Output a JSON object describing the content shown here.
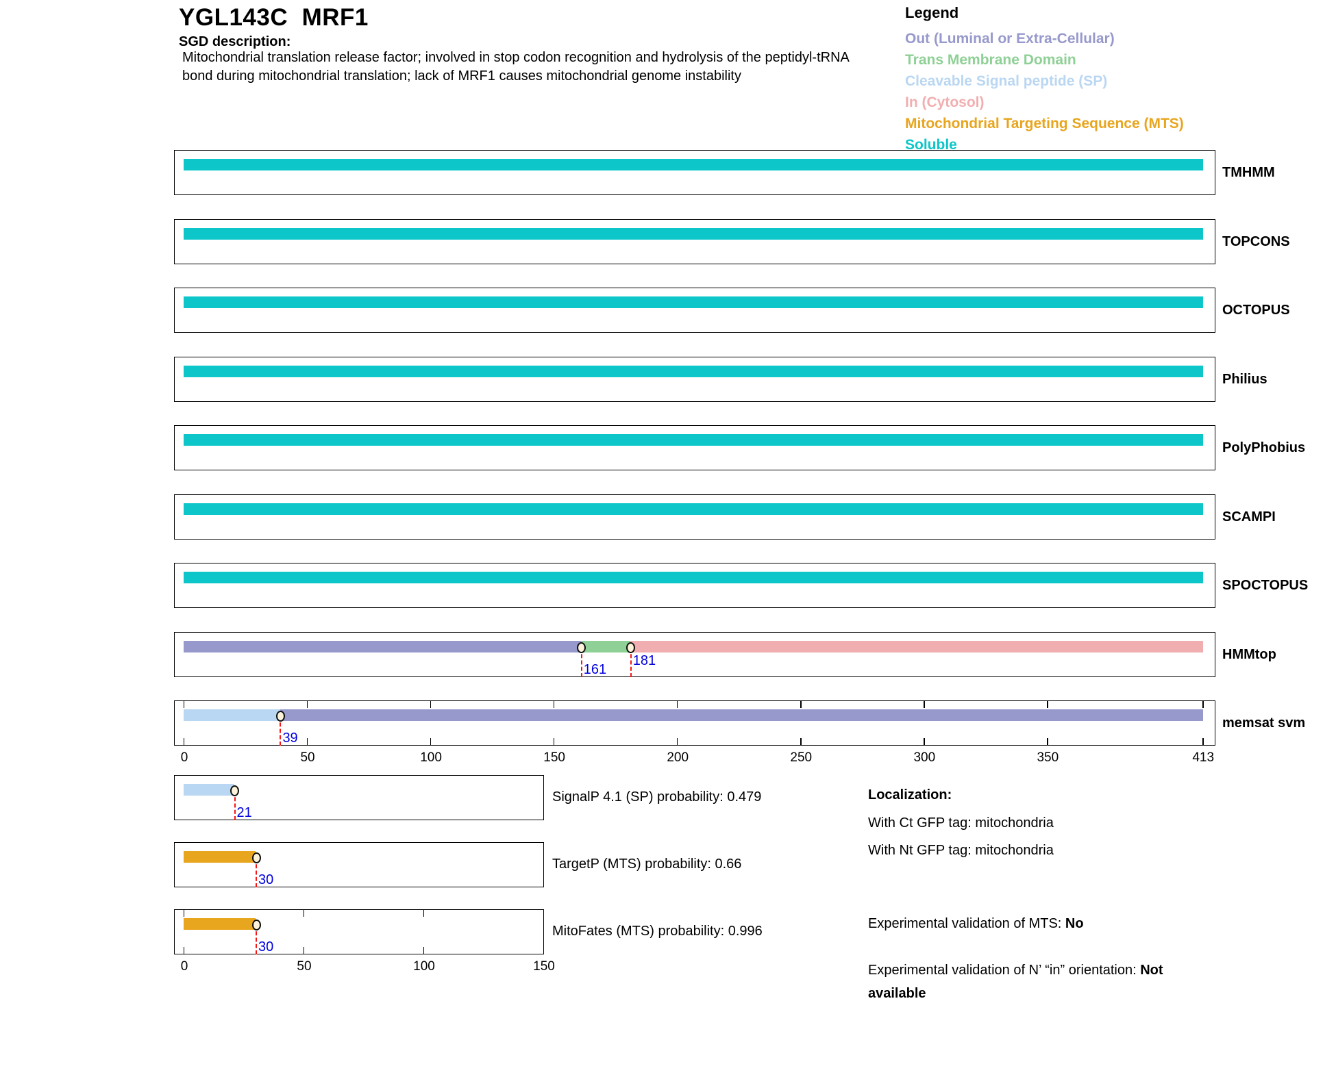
{
  "header": {
    "title": "YGL143C  MRF1",
    "sgd_label": "SGD description:",
    "description_lines": [
      "Mitochondrial translation release factor; involved in stop codon recognition and hydrolysis of the peptidyl-tRNA",
      "bond during mitochondrial translation; lack of MRF1 causes mitochondrial genome instability"
    ]
  },
  "legend": {
    "title": "Legend",
    "item_keys": [
      "out",
      "tmd",
      "sp",
      "in",
      "mts",
      "soluble"
    ]
  },
  "chart_data": {
    "type": "bar",
    "subtype": "protein-topology-tracks",
    "sequence_length": 413,
    "x_axis": {
      "min": 0,
      "max": 413,
      "ticks": [
        0,
        50,
        100,
        150,
        200,
        250,
        300,
        350,
        413
      ]
    },
    "probability_axis": {
      "min": 0,
      "max": 150,
      "ticks": [
        0,
        50,
        100,
        150
      ]
    },
    "categories": {
      "out": {
        "label": "Out (Luminal or Extra-Cellular)",
        "color": "#9799cc"
      },
      "tmd": {
        "label": "Trans Membrane Domain",
        "color": "#8ed095"
      },
      "sp": {
        "label": "Cleavable Signal peptide (SP)",
        "color": "#b9d6f2"
      },
      "in": {
        "label": "In (Cytosol)",
        "color": "#f1aeb0"
      },
      "mts": {
        "label": "Mitochondrial Targeting Sequence (MTS)",
        "color": "#e8a51e"
      },
      "soluble": {
        "label": "Soluble",
        "color": "#0cc6c9"
      }
    },
    "tracks": [
      {
        "name": "TMHMM",
        "segments": [
          {
            "start": 0,
            "end": 413,
            "category": "soluble"
          }
        ],
        "markers": []
      },
      {
        "name": "TOPCONS",
        "segments": [
          {
            "start": 0,
            "end": 413,
            "category": "soluble"
          }
        ],
        "markers": []
      },
      {
        "name": "OCTOPUS",
        "segments": [
          {
            "start": 0,
            "end": 413,
            "category": "soluble"
          }
        ],
        "markers": []
      },
      {
        "name": "Philius",
        "segments": [
          {
            "start": 0,
            "end": 413,
            "category": "soluble"
          }
        ],
        "markers": []
      },
      {
        "name": "PolyPhobius",
        "segments": [
          {
            "start": 0,
            "end": 413,
            "category": "soluble"
          }
        ],
        "markers": []
      },
      {
        "name": "SCAMPI",
        "segments": [
          {
            "start": 0,
            "end": 413,
            "category": "soluble"
          }
        ],
        "markers": []
      },
      {
        "name": "SPOCTOPUS",
        "segments": [
          {
            "start": 0,
            "end": 413,
            "category": "soluble"
          }
        ],
        "markers": []
      },
      {
        "name": "HMMtop",
        "segments": [
          {
            "start": 0,
            "end": 161,
            "category": "out"
          },
          {
            "start": 161,
            "end": 181,
            "category": "tmd"
          },
          {
            "start": 181,
            "end": 413,
            "category": "in"
          }
        ],
        "markers": [
          {
            "pos": 161,
            "label": "161",
            "label_pos": "low"
          },
          {
            "pos": 181,
            "label": "181",
            "label_pos": "high"
          }
        ]
      },
      {
        "name": "memsat svm",
        "segments": [
          {
            "start": 0,
            "end": 39,
            "category": "sp"
          },
          {
            "start": 39,
            "end": 413,
            "category": "out"
          }
        ],
        "markers": [
          {
            "pos": 39,
            "label": "39",
            "label_pos": "low"
          }
        ],
        "show_ticks": true,
        "show_axis": true
      }
    ],
    "probability_tracks": [
      {
        "name": "SignalP 4.1 (SP)",
        "display_label": "SignalP 4.1 (SP) probability: 0.479",
        "probability": 0.479,
        "segments": [
          {
            "start": 0,
            "end": 21,
            "category": "sp"
          }
        ],
        "markers": [
          {
            "pos": 21,
            "label": "21",
            "label_pos": "low"
          }
        ]
      },
      {
        "name": "TargetP (MTS)",
        "display_label": "TargetP (MTS) probability: 0.66",
        "probability": 0.66,
        "segments": [
          {
            "start": 0,
            "end": 30,
            "category": "mts"
          }
        ],
        "markers": [
          {
            "pos": 30,
            "label": "30",
            "label_pos": "low"
          }
        ]
      },
      {
        "name": "MitoFates (MTS)",
        "display_label": "MitoFates (MTS) probability: 0.996",
        "probability": 0.996,
        "segments": [
          {
            "start": 0,
            "end": 30,
            "category": "mts"
          }
        ],
        "markers": [
          {
            "pos": 30,
            "label": "30",
            "label_pos": "low"
          }
        ],
        "show_ticks": true,
        "show_axis": true
      }
    ],
    "marker_style": {
      "dot_fill": "#fcf3da",
      "dot_stroke": "#101010",
      "line_color": "#f51515",
      "label_color": "#0202dd"
    }
  },
  "localization": {
    "title": "Localization:",
    "lines": [
      "With Ct GFP tag: mitochondria",
      "With Nt GFP tag: mitochondria"
    ],
    "mts_validation_prefix": "Experimental validation of MTS: ",
    "mts_validation_value": "No",
    "orientation_prefix": "Experimental validation of N’ “in” orientation: ",
    "orientation_value": "Not available"
  }
}
